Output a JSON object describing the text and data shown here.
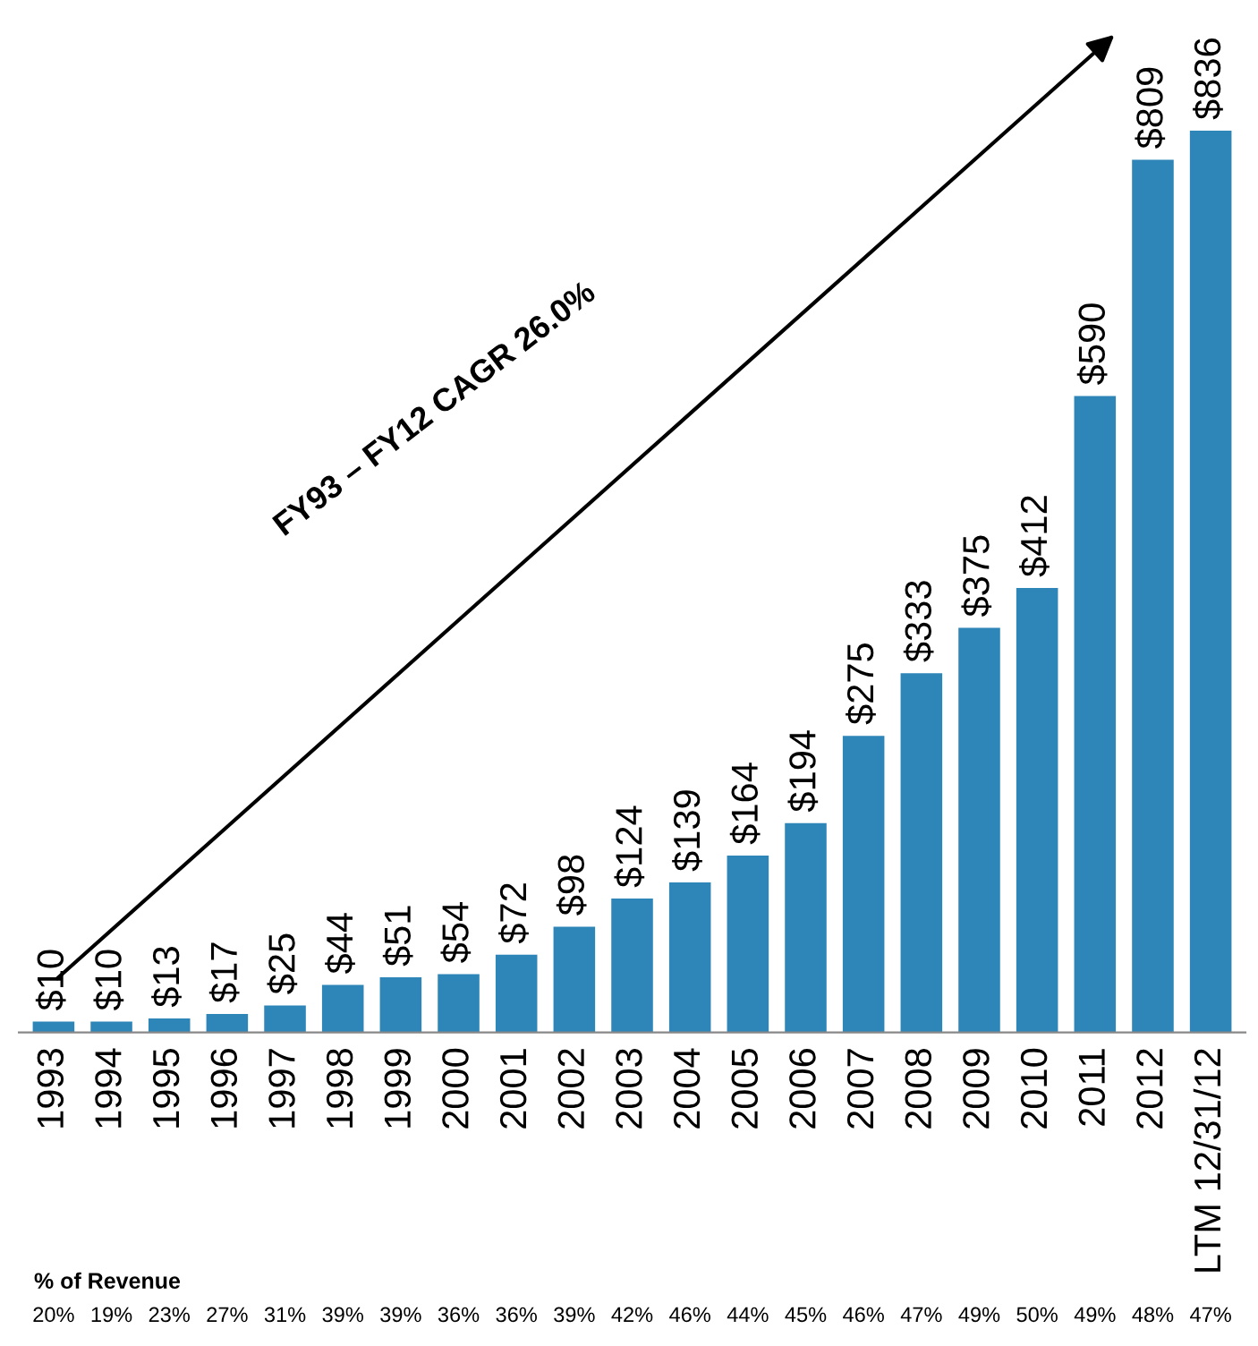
{
  "chart_data": {
    "type": "bar",
    "categories": [
      "1993",
      "1994",
      "1995",
      "1996",
      "1997",
      "1998",
      "1999",
      "2000",
      "2001",
      "2002",
      "2003",
      "2004",
      "2005",
      "2006",
      "2007",
      "2008",
      "2009",
      "2010",
      "2011",
      "2012",
      "LTM 12/31/12"
    ],
    "values": [
      10,
      10,
      13,
      17,
      25,
      44,
      51,
      54,
      72,
      98,
      124,
      139,
      164,
      194,
      275,
      333,
      375,
      412,
      590,
      809,
      836
    ],
    "value_labels": [
      "$10",
      "$10",
      "$13",
      "$17",
      "$25",
      "$44",
      "$51",
      "$54",
      "$72",
      "$98",
      "$124",
      "$139",
      "$164",
      "$194",
      "$275",
      "$333",
      "$375",
      "$412",
      "$590",
      "$809",
      "$836"
    ],
    "color": "#2e86b8",
    "annotations": [
      "FY93 – FY12 CAGR 26.0%",
      "% of Revenue",
      "20%",
      "19%",
      "23%",
      "27%",
      "31%",
      "39%",
      "39%",
      "36%",
      "36%",
      "39%",
      "42%",
      "46%",
      "44%",
      "45%",
      "46%",
      "47%",
      "49%",
      "50%",
      "49%",
      "48%",
      "47%"
    ],
    "grid": false,
    "legend": false
  }
}
